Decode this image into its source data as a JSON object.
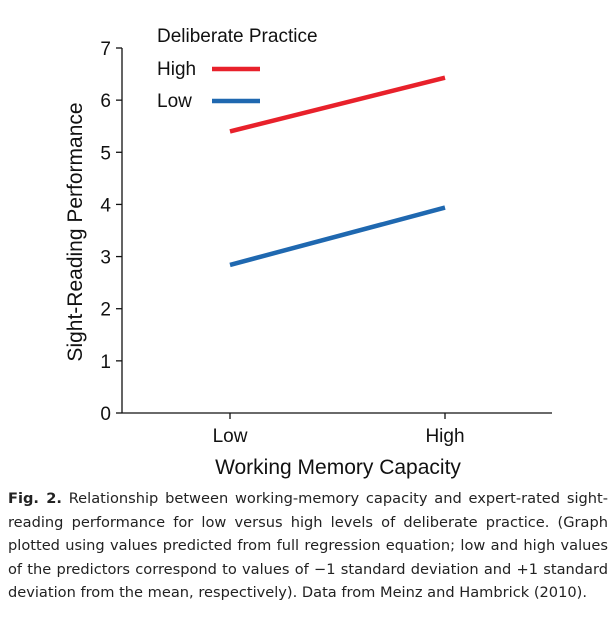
{
  "chart_data": {
    "type": "line",
    "categories": [
      "Low",
      "High"
    ],
    "xlabel": "Working Memory Capacity",
    "ylabel": "Sight-Reading Performance",
    "ylim": [
      0,
      7
    ],
    "yticks": [
      "0",
      "1",
      "2",
      "3",
      "4",
      "5",
      "6",
      "7"
    ],
    "legend": {
      "title": "Deliberate Practice",
      "position": "top-left"
    },
    "series": [
      {
        "name": "High",
        "values": [
          5.4,
          6.43
        ],
        "color": "#e8212b"
      },
      {
        "name": "Low",
        "values": [
          2.84,
          3.94
        ],
        "color": "#1f68b0"
      }
    ]
  },
  "caption": {
    "label": "Fig. 2.",
    "text": "Relationship between working-memory capacity and expert-rated sight-reading performance for low versus high levels of deliberate practice. (Graph plotted using values predicted from full regression equation; low and high values of the predictors correspond to values of −1 standard deviation and +1 standard deviation from the mean, respectively). Data from Meinz and Hambrick (2010)."
  }
}
